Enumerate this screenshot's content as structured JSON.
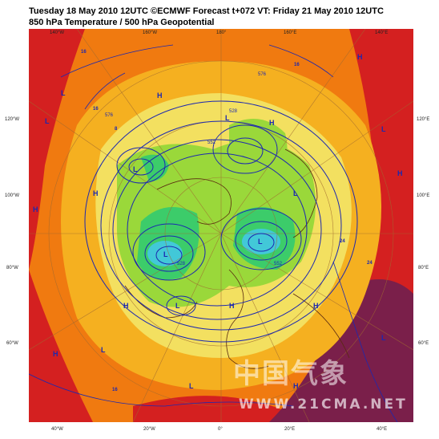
{
  "header": {
    "line1": "Tuesday 18 May 2010 12UTC ©ECMWF Forecast t+072 VT: Friday 21 May 2010 12UTC",
    "line2": "850 hPa Temperature / 500 hPa Geopotential"
  },
  "lon_top": [
    "140°W",
    "160°W",
    "180°",
    "160°E",
    "140°E"
  ],
  "lon_bottom": [
    "40°W",
    "20°W",
    "0°",
    "20°E",
    "40°E"
  ],
  "lat_left": [
    "120°W",
    "100°W",
    "80°W",
    "60°W"
  ],
  "lat_right": [
    "120°E",
    "100°E",
    "80°E",
    "60°E"
  ],
  "contour_labels": [
    "16",
    "16",
    "8",
    "576",
    "552",
    "528",
    "528",
    "552",
    "576",
    "24",
    "24",
    "16",
    "16"
  ],
  "pressure_marks": [
    "L",
    "L",
    "L",
    "L",
    "L",
    "L",
    "L",
    "H",
    "H",
    "H",
    "H",
    "H",
    "H",
    "H",
    "H",
    "H",
    "L",
    "L",
    "L",
    "H",
    "L",
    "H",
    "L"
  ],
  "watermark": {
    "cjk": "中国气象",
    "url": "WWW.21CMA.NET"
  },
  "colors": {
    "hot": "#d42020",
    "warm": "#f07a10",
    "mild": "#f5b020",
    "cool": "#f3e060",
    "cold": "#9ad83a",
    "colder": "#3ccc6a",
    "coldest": "#42c8d8",
    "contour": "#1c28b0",
    "extreme": "#7a1f4a"
  }
}
